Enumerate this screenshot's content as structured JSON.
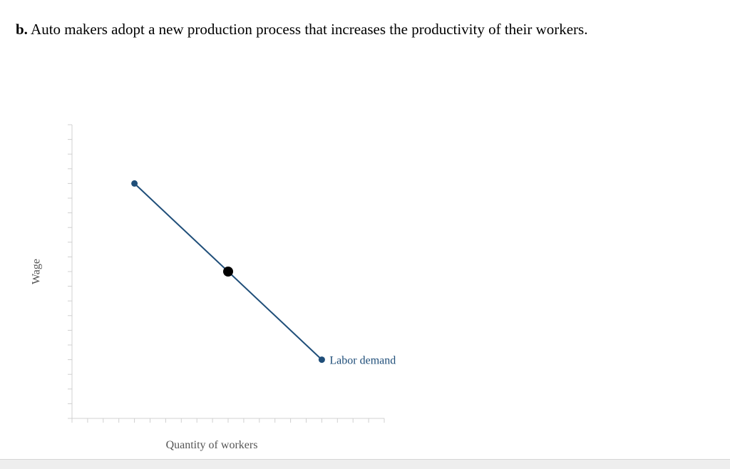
{
  "question": {
    "part_label": "b.",
    "text": "Auto makers adopt a new production process that increases the productivity of their workers."
  },
  "chart_data": {
    "type": "line",
    "title": "",
    "xlabel": "Quantity of workers",
    "ylabel": "Wage",
    "xlim": [
      0,
      20
    ],
    "ylim": [
      0,
      20
    ],
    "grid": false,
    "x_minor_ticks": 20,
    "y_minor_ticks": 20,
    "series": [
      {
        "name": "Labor demand",
        "color": "#1f4e79",
        "points": [
          {
            "x": 4,
            "y": 16
          },
          {
            "x": 16,
            "y": 4
          }
        ]
      }
    ],
    "markers": [
      {
        "x": 10,
        "y": 10,
        "color": "#000000"
      }
    ]
  }
}
